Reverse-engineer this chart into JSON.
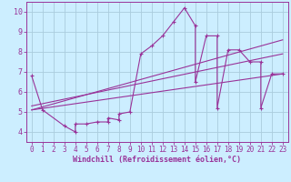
{
  "xlabel": "Windchill (Refroidissement éolien,°C)",
  "bg_color": "#cceeff",
  "line_color": "#993399",
  "grid_color": "#aaccdd",
  "xlim": [
    -0.5,
    23.5
  ],
  "ylim": [
    3.5,
    10.5
  ],
  "xticks": [
    0,
    1,
    2,
    3,
    4,
    5,
    6,
    7,
    8,
    9,
    10,
    11,
    12,
    13,
    14,
    15,
    16,
    17,
    18,
    19,
    20,
    21,
    22,
    23
  ],
  "yticks": [
    4,
    5,
    6,
    7,
    8,
    9,
    10
  ],
  "series1_x": [
    0,
    1,
    3,
    4,
    4,
    5,
    6,
    7,
    7,
    8,
    8,
    9,
    10,
    11,
    12,
    13,
    14,
    15,
    15,
    16,
    17,
    17,
    18,
    19,
    20,
    21,
    21,
    22,
    23
  ],
  "series1_y": [
    6.8,
    5.1,
    4.3,
    4.0,
    4.4,
    4.4,
    4.5,
    4.5,
    4.7,
    4.6,
    4.9,
    5.0,
    7.9,
    8.3,
    8.8,
    9.5,
    10.2,
    9.3,
    6.5,
    8.8,
    8.8,
    5.2,
    8.1,
    8.1,
    7.5,
    7.5,
    5.2,
    6.9,
    6.9
  ],
  "series2_x": [
    0,
    23
  ],
  "series2_y": [
    5.1,
    6.9
  ],
  "series3_x": [
    0,
    23
  ],
  "series3_y": [
    5.3,
    7.9
  ],
  "series4_x": [
    0,
    23
  ],
  "series4_y": [
    5.1,
    8.6
  ],
  "tick_fontsize": 5.5,
  "xlabel_fontsize": 6.0
}
